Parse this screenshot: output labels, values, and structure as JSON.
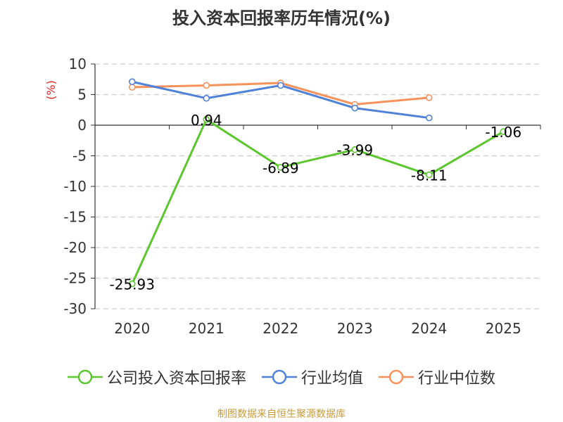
{
  "chart_data": {
    "type": "line",
    "title": "投入资本回报率历年情况(%)",
    "ylabel": "(%)",
    "xlabel": "",
    "categories": [
      "2020",
      "2021",
      "2022",
      "2023",
      "2024",
      "2025"
    ],
    "ylim": [
      -30,
      10
    ],
    "yticks": [
      10,
      5,
      0,
      -5,
      -10,
      -15,
      -20,
      -25,
      -30
    ],
    "grid": true,
    "legend_position": "bottom",
    "series": [
      {
        "name": "公司投入资本回报率",
        "color": "#5cc62f",
        "values": [
          -25.93,
          0.94,
          -6.89,
          -3.99,
          -8.11,
          -1.06
        ],
        "labels": [
          "-25.93",
          "0.94",
          "-6.89",
          "-3.99",
          "-8.11",
          "-1.06"
        ]
      },
      {
        "name": "行业均值",
        "color": "#4f81d9",
        "values": [
          7.1,
          4.4,
          6.5,
          2.8,
          1.2,
          null
        ]
      },
      {
        "name": "行业中位数",
        "color": "#f7925b",
        "values": [
          6.2,
          6.5,
          6.9,
          3.4,
          4.5,
          null
        ]
      }
    ]
  },
  "source": "制图数据来自恒生聚源数据库"
}
